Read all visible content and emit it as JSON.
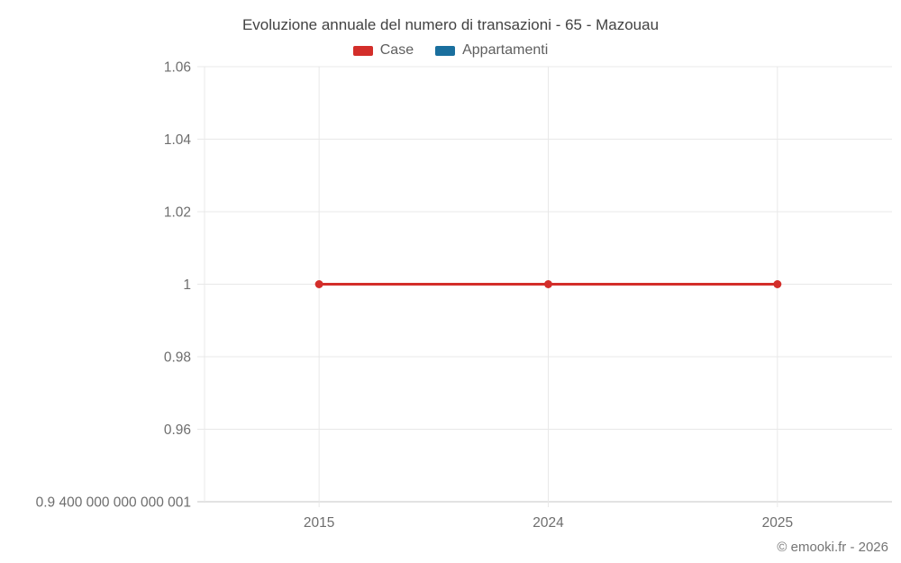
{
  "page": {
    "copyright": "© emooki.fr - 2026"
  },
  "chart_data": {
    "type": "line",
    "title": "Evoluzione annuale del numero di transazioni - 65 - Mazouau",
    "categories": [
      "2015",
      "2024",
      "2025"
    ],
    "series": [
      {
        "name": "Case",
        "color": "#d32e2a",
        "values": [
          1,
          1,
          1
        ]
      },
      {
        "name": "Appartamenti",
        "color": "#1a6f9e",
        "values": []
      }
    ],
    "y_ticks": [
      {
        "value": 1.06,
        "label": "1.06"
      },
      {
        "value": 1.04,
        "label": "1.04"
      },
      {
        "value": 1.02,
        "label": "1.02"
      },
      {
        "value": 1,
        "label": "1"
      },
      {
        "value": 0.98,
        "label": "0.98"
      },
      {
        "value": 0.96,
        "label": "0.96"
      },
      {
        "value": 0.94,
        "label": "0.9 400 000 000 000 001"
      }
    ],
    "ylim": [
      0.94,
      1.06
    ],
    "xlabel": "",
    "ylabel": "",
    "legend_position": "top",
    "grid": true
  }
}
